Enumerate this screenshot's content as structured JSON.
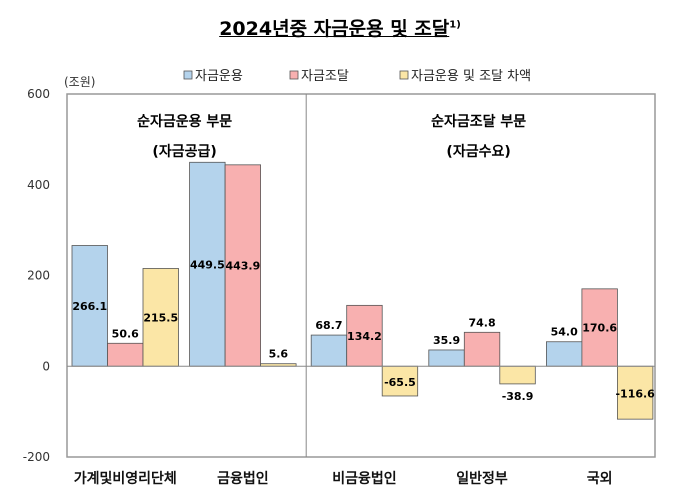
{
  "title": "2024년중 자금운용 및 조달",
  "title_note": "1)",
  "chart_data": {
    "type": "bar",
    "unit_label": "(조원)",
    "categories": [
      "가계및비영리단체",
      "금융법인",
      "비금융법인",
      "일반정부",
      "국외"
    ],
    "series": [
      {
        "name": "자금운용",
        "color": "#b4d3ec",
        "values": [
          266.1,
          449.5,
          68.7,
          35.9,
          54.0
        ]
      },
      {
        "name": "자금조달",
        "color": "#f8b0b0",
        "values": [
          50.6,
          443.9,
          134.2,
          74.8,
          170.6
        ]
      },
      {
        "name": "자금운용 및 조달 차액",
        "color": "#fbe6a6",
        "values": [
          215.5,
          5.6,
          -65.5,
          -38.9,
          -116.6
        ]
      }
    ],
    "ylim": [
      -200,
      600
    ],
    "yticks": [
      -200,
      0,
      200,
      400,
      600
    ],
    "legend": "top",
    "grid": false,
    "annotations": [
      {
        "line1": "순자금운용 부문",
        "line2": "(자금공급)"
      },
      {
        "line1": "순자금조달 부문",
        "line2": "(자금수요)"
      }
    ]
  }
}
